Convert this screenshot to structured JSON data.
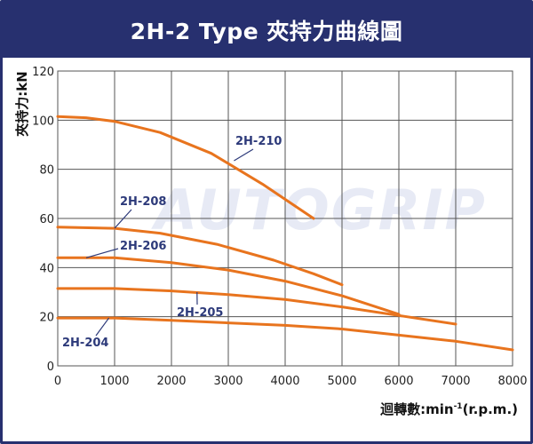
{
  "chart_data": {
    "type": "line",
    "title": "2H-2 Type 夾持力曲線圖",
    "xlabel": "迴轉數:min",
    "xlabel_sup": "-1",
    "xlabel_suffix": "(r.p.m.)",
    "ylabel": "夾持力:kN",
    "xlim": [
      0,
      8000
    ],
    "ylim": [
      0,
      120
    ],
    "x_ticks": [
      "0",
      "1000",
      "2000",
      "3000",
      "4000",
      "5000",
      "6000",
      "7000",
      "8000"
    ],
    "y_ticks": [
      "0",
      "20",
      "40",
      "60",
      "80",
      "100",
      "120"
    ],
    "grid": true,
    "line_color": "#e8741e",
    "grid_color": "#555555",
    "watermark": "AUTOGRIP",
    "series": [
      {
        "name": "2H-210",
        "points": [
          [
            0,
            101.5
          ],
          [
            500,
            101
          ],
          [
            1000,
            99.5
          ],
          [
            1800,
            95
          ],
          [
            2700,
            86.5
          ],
          [
            3600,
            74
          ],
          [
            4500,
            60
          ]
        ]
      },
      {
        "name": "2H-208",
        "points": [
          [
            0,
            56.5
          ],
          [
            1000,
            56
          ],
          [
            1800,
            54
          ],
          [
            2800,
            49.5
          ],
          [
            3800,
            43
          ],
          [
            4500,
            37.5
          ],
          [
            5000,
            33
          ]
        ]
      },
      {
        "name": "2H-206",
        "points": [
          [
            0,
            44
          ],
          [
            1000,
            44
          ],
          [
            2000,
            42
          ],
          [
            3000,
            39
          ],
          [
            4000,
            34.5
          ],
          [
            5000,
            28.5
          ],
          [
            6000,
            21
          ]
        ]
      },
      {
        "name": "2H-205",
        "points": [
          [
            0,
            31.5
          ],
          [
            1000,
            31.5
          ],
          [
            2000,
            30.5
          ],
          [
            3000,
            29
          ],
          [
            4000,
            27
          ],
          [
            5000,
            24
          ],
          [
            6000,
            20.5
          ],
          [
            7000,
            17
          ]
        ]
      },
      {
        "name": "2H-204",
        "points": [
          [
            0,
            19.5
          ],
          [
            1000,
            19.5
          ],
          [
            2000,
            18.5
          ],
          [
            3000,
            17.5
          ],
          [
            4000,
            16.5
          ],
          [
            5000,
            15
          ],
          [
            6000,
            12.5
          ],
          [
            7000,
            10
          ],
          [
            8000,
            6.5
          ]
        ]
      }
    ]
  }
}
